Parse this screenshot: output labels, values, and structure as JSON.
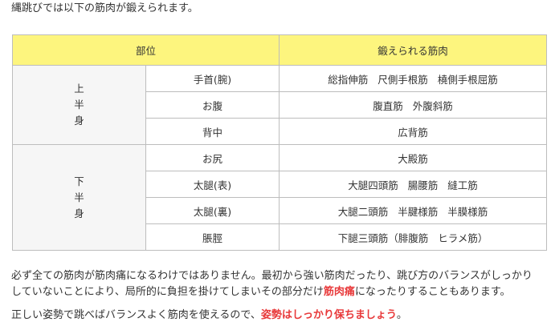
{
  "intro": "縄跳びでは以下の筋肉が鍛えられます。",
  "table": {
    "headers": [
      "部位",
      "鍛えられる筋肉"
    ],
    "groups": [
      {
        "region_chars": [
          "上",
          "半",
          "身"
        ],
        "rows": [
          {
            "part": "手首(腕)",
            "muscles": [
              "総指伸筋",
              "尺側手根筋",
              "橈側手根屈筋"
            ]
          },
          {
            "part": "お腹",
            "muscles": [
              "腹直筋",
              "外腹斜筋"
            ]
          },
          {
            "part": "背中",
            "muscles": [
              "広背筋"
            ]
          }
        ]
      },
      {
        "region_chars": [
          "下",
          "半",
          "身"
        ],
        "rows": [
          {
            "part": "お尻",
            "muscles": [
              "大殿筋"
            ]
          },
          {
            "part": "太腿(表)",
            "muscles": [
              "大腿四頭筋",
              "腸腰筋",
              "縫工筋"
            ]
          },
          {
            "part": "太腿(裏)",
            "muscles": [
              "大腿二頭筋",
              "半腱様筋",
              "半膜様筋"
            ]
          },
          {
            "part": "脹脛",
            "muscles": [
              "下腿三頭筋（腓腹筋",
              "ヒラメ筋）"
            ]
          }
        ]
      }
    ]
  },
  "paragraph1": {
    "line1": "必ず全ての筋肉が筋肉痛になるわけではありません。最初から強い筋肉だったり、跳び方のバランスがしっかり",
    "line2_before": "していないことにより、局所的に負担を掛けてしまいその部分だけ",
    "line2_highlight": "筋肉痛",
    "line2_after": "になったりすることもあります。"
  },
  "paragraph2": {
    "text": "正しい姿勢で跳べばバランスよく筋肉を使えるので、",
    "highlight": "姿勢はしっかり保ちましょう",
    "end": "。"
  },
  "colors": {
    "header_bg": "#fdf57e",
    "region_bg": "#f6f6f6",
    "border": "#bdbdbd",
    "highlight_text": "#e8393a"
  }
}
